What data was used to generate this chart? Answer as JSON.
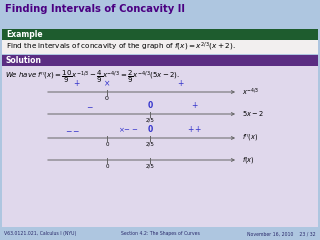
{
  "title": "Finding Intervals of Concavity II",
  "title_color": "#4B0082",
  "title_bg": "#aec6e0",
  "example_label": "Example",
  "example_bg": "#1e5c2e",
  "solution_label": "Solution",
  "solution_bg": "#5b2d82",
  "body_bg": "#e0d8ec",
  "example_body_bg": "#f0eeee",
  "footer_bg": "#aec6e0",
  "footer_left": "V63.0121.021, Calculus I (NYU)",
  "footer_mid": "Section 4.2: The Shapes of Curves",
  "footer_right": "November 16, 2010    23 / 32",
  "sign_color": "#3333cc",
  "label_color": "#222222"
}
